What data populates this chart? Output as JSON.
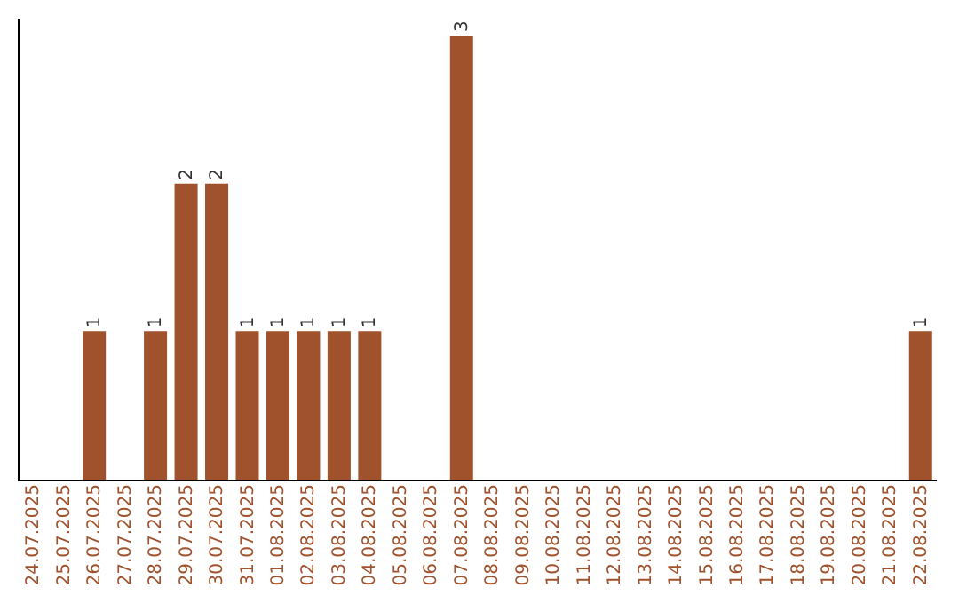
{
  "chart_data": {
    "type": "bar",
    "categories": [
      "24.07.2025",
      "25.07.2025",
      "26.07.2025",
      "27.07.2025",
      "28.07.2025",
      "29.07.2025",
      "30.07.2025",
      "31.07.2025",
      "01.08.2025",
      "02.08.2025",
      "03.08.2025",
      "04.08.2025",
      "05.08.2025",
      "06.08.2025",
      "07.08.2025",
      "08.08.2025",
      "09.08.2025",
      "10.08.2025",
      "11.08.2025",
      "12.08.2025",
      "13.08.2025",
      "14.08.2025",
      "15.08.2025",
      "16.08.2025",
      "17.08.2025",
      "18.08.2025",
      "19.08.2025",
      "20.08.2025",
      "21.08.2025",
      "22.08.2025"
    ],
    "values": [
      0,
      0,
      1,
      0,
      1,
      2,
      2,
      1,
      1,
      1,
      1,
      1,
      0,
      0,
      3,
      0,
      0,
      0,
      0,
      0,
      0,
      0,
      0,
      0,
      0,
      0,
      0,
      0,
      0,
      1
    ],
    "value_labels": [
      null,
      null,
      "1",
      null,
      "1",
      "2",
      "2",
      "1",
      "1",
      "1",
      "1",
      "1",
      null,
      null,
      "3",
      null,
      null,
      null,
      null,
      null,
      null,
      null,
      null,
      null,
      null,
      null,
      null,
      null,
      null,
      "1"
    ],
    "color": "#a0522d",
    "ylim": [
      0,
      3.12
    ],
    "tick_labels": "x",
    "grid": false
  }
}
